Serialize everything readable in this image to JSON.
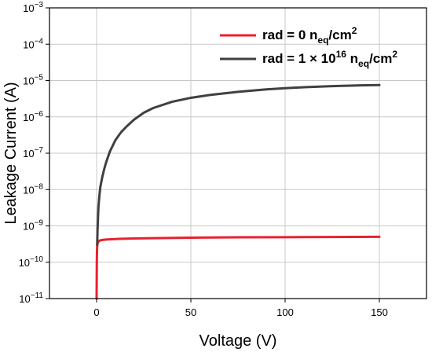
{
  "chart_data": {
    "type": "line",
    "xlabel": "Voltage (V)",
    "ylabel": "Leakage Current (A)",
    "xlim": [
      -25,
      175
    ],
    "ylim": [
      1e-11,
      0.001
    ],
    "y_scale": "log",
    "grid": true,
    "legend_position": "top-right",
    "x_ticks": [
      {
        "value": 0,
        "label": "0"
      },
      {
        "value": 50,
        "label": "50"
      },
      {
        "value": 100,
        "label": "100"
      },
      {
        "value": 150,
        "label": "150"
      }
    ],
    "y_ticks": [
      {
        "value": 1e-11,
        "base": "10",
        "exp": "−11"
      },
      {
        "value": 1e-10,
        "base": "10",
        "exp": "−10"
      },
      {
        "value": 1e-09,
        "base": "10",
        "exp": "−9"
      },
      {
        "value": 1e-08,
        "base": "10",
        "exp": "−8"
      },
      {
        "value": 1e-07,
        "base": "10",
        "exp": "−7"
      },
      {
        "value": 1e-06,
        "base": "10",
        "exp": "−6"
      },
      {
        "value": 1e-05,
        "base": "10",
        "exp": "−5"
      },
      {
        "value": 0.0001,
        "base": "10",
        "exp": "−4"
      },
      {
        "value": 0.001,
        "base": "10",
        "exp": "−3"
      }
    ],
    "series": [
      {
        "legend": {
          "prefix": "rad = 0 n",
          "sub": "eq",
          "mid": "/cm",
          "sup": "2"
        },
        "color": "#e8212f",
        "x": [
          0,
          0.05,
          0.1,
          0.2,
          0.3,
          0.5,
          1,
          1.5,
          2,
          3,
          5,
          8,
          12,
          20,
          30,
          50,
          75,
          100,
          125,
          150
        ],
        "y": [
          1e-11,
          3e-11,
          1e-10,
          2e-10,
          2.8e-10,
          3.3e-10,
          3.7e-10,
          3.9e-10,
          4e-10,
          4.1e-10,
          4.2e-10,
          4.3e-10,
          4.4e-10,
          4.5e-10,
          4.6e-10,
          4.75e-10,
          4.85e-10,
          4.9e-10,
          4.95e-10,
          5e-10
        ]
      },
      {
        "legend": {
          "prefix": "rad = 1 × 10",
          "sup1": "16",
          "mid": " n",
          "sub": "eq",
          "mid2": "/cm",
          "sup": "2"
        },
        "color": "#404040",
        "x": [
          0.3,
          0.5,
          0.8,
          1,
          1.5,
          2,
          3,
          4,
          5,
          7,
          10,
          13,
          16,
          20,
          25,
          30,
          40,
          50,
          60,
          75,
          90,
          100,
          110,
          125,
          140,
          150
        ],
        "y": [
          3e-10,
          8e-10,
          2e-09,
          3.5e-09,
          7e-09,
          1.2e-08,
          2.2e-08,
          3.6e-08,
          5.5e-08,
          1.1e-07,
          2.3e-07,
          3.8e-07,
          5.5e-07,
          8.5e-07,
          1.3e-06,
          1.75e-06,
          2.6e-06,
          3.35e-06,
          4e-06,
          4.9e-06,
          5.7e-06,
          6.15e-06,
          6.55e-06,
          7e-06,
          7.35e-06,
          7.5e-06
        ]
      }
    ]
  }
}
